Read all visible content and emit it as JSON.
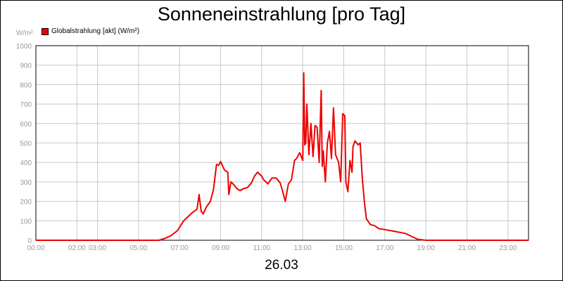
{
  "chart_data": {
    "type": "line",
    "title": "Sonneneinstrahlung [pro Tag]",
    "unit_label": "W/m²",
    "xlabel": "26.03",
    "ylim": [
      0,
      1000
    ],
    "y_ticks": [
      0,
      100,
      200,
      300,
      400,
      500,
      600,
      700,
      800,
      900,
      1000
    ],
    "xlim": [
      0,
      24
    ],
    "x_ticks": [
      {
        "x": 0,
        "label": "00:00"
      },
      {
        "x": 2,
        "label": "02:00"
      },
      {
        "x": 3,
        "label": "03:00"
      },
      {
        "x": 5,
        "label": "05:00"
      },
      {
        "x": 7,
        "label": "07:00"
      },
      {
        "x": 9,
        "label": "09:00"
      },
      {
        "x": 11,
        "label": "11:00"
      },
      {
        "x": 13,
        "label": "13:00"
      },
      {
        "x": 15,
        "label": "15:00"
      },
      {
        "x": 17,
        "label": "17:00"
      },
      {
        "x": 19,
        "label": "19:00"
      },
      {
        "x": 21,
        "label": "21:00"
      },
      {
        "x": 23,
        "label": "23:00"
      }
    ],
    "grid": true,
    "legend_position": "top-left",
    "series": [
      {
        "name": "Globalstrahlung [akt] (W/m²)",
        "color": "#ee0000",
        "x": [
          0,
          6.0,
          6.3,
          6.6,
          6.9,
          7.2,
          7.35,
          7.6,
          7.85,
          7.95,
          8.05,
          8.15,
          8.3,
          8.5,
          8.65,
          8.8,
          8.9,
          9.0,
          9.1,
          9.2,
          9.35,
          9.4,
          9.5,
          9.65,
          9.8,
          9.95,
          10.1,
          10.3,
          10.5,
          10.65,
          10.8,
          11.0,
          11.1,
          11.3,
          11.5,
          11.7,
          11.9,
          12.0,
          12.15,
          12.3,
          12.45,
          12.6,
          12.7,
          12.85,
          13.0,
          13.05,
          13.1,
          13.15,
          13.2,
          13.3,
          13.4,
          13.5,
          13.6,
          13.7,
          13.8,
          13.9,
          13.95,
          14.0,
          14.1,
          14.2,
          14.3,
          14.4,
          14.5,
          14.6,
          14.75,
          14.85,
          14.95,
          15.05,
          15.1,
          15.2,
          15.3,
          15.4,
          15.45,
          15.55,
          15.7,
          15.8,
          15.9,
          16.0,
          16.1,
          16.3,
          16.5,
          16.7,
          17.0,
          17.5,
          18.0,
          18.3,
          18.6,
          19.0,
          20.0,
          24.0
        ],
        "values": [
          0,
          0,
          10,
          25,
          50,
          100,
          115,
          140,
          160,
          235,
          150,
          135,
          170,
          200,
          260,
          390,
          385,
          405,
          380,
          360,
          350,
          235,
          300,
          285,
          265,
          255,
          265,
          270,
          295,
          330,
          350,
          330,
          310,
          290,
          320,
          320,
          295,
          260,
          200,
          290,
          310,
          410,
          420,
          450,
          410,
          860,
          490,
          500,
          700,
          440,
          600,
          430,
          590,
          580,
          400,
          770,
          380,
          460,
          300,
          500,
          560,
          420,
          680,
          440,
          400,
          300,
          650,
          640,
          300,
          250,
          410,
          350,
          480,
          510,
          490,
          500,
          320,
          200,
          110,
          80,
          75,
          60,
          55,
          45,
          35,
          20,
          5,
          0,
          0,
          0
        ]
      }
    ]
  }
}
